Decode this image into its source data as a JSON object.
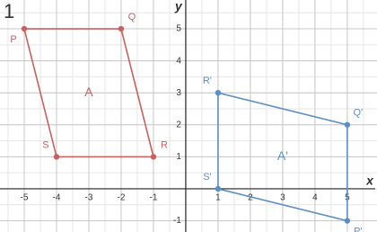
{
  "chart_data": {
    "type": "polygon",
    "figure_label": "1",
    "x_label": "x",
    "y_label": "y",
    "xlim": [
      -5.75,
      5.92
    ],
    "ylim": [
      -1.35,
      5.9
    ],
    "xticks": [
      -5,
      -4,
      -3,
      -2,
      -1,
      1,
      2,
      3,
      4,
      5
    ],
    "yticks": [
      -1,
      1,
      2,
      3,
      4,
      5
    ],
    "grid": true,
    "series": [
      {
        "name": "A",
        "color": "#c9605e",
        "points": [
          "P",
          "Q",
          "R",
          "S"
        ],
        "x": [
          -5,
          -2,
          -1,
          -4
        ],
        "y": [
          5,
          5,
          1,
          1
        ]
      },
      {
        "name": "A'",
        "color": "#5b8fc0",
        "points": [
          "R'",
          "Q'",
          "P'",
          "S'"
        ],
        "x": [
          1,
          5,
          5,
          1
        ],
        "y": [
          3,
          2,
          -1,
          0
        ]
      }
    ]
  }
}
